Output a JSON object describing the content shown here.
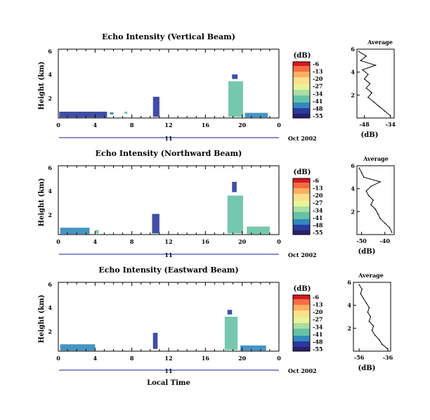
{
  "chart_data": [
    {
      "type": "heatmap",
      "title": "Echo Intensity (Vertical Beam)",
      "ylabel": "Height (km)",
      "yticks": [
        "2",
        "4",
        "6"
      ],
      "ylim": [
        0,
        6
      ],
      "xticks": [
        "0",
        "4",
        "8",
        "12",
        "16",
        "20",
        "0"
      ],
      "day_label": "11",
      "date_label": "Oct 2002",
      "colorbar": {
        "label": "(dB)",
        "levels": [
          "-6",
          "-13",
          "-20",
          "-27",
          "-34",
          "-41",
          "-48",
          "-55"
        ]
      },
      "echoes": [
        {
          "hour": 0.1,
          "dur": 5.2,
          "h0": 0.05,
          "h1": 0.55,
          "db": -48
        },
        {
          "hour": 5.6,
          "dur": 0.4,
          "h0": 0.3,
          "h1": 0.5,
          "db": -45
        },
        {
          "hour": 7.2,
          "dur": 0.3,
          "h0": 0.35,
          "h1": 0.55,
          "db": -40
        },
        {
          "hour": 10.3,
          "dur": 0.7,
          "h0": 0.1,
          "h1": 1.85,
          "db": -50
        },
        {
          "hour": 18.5,
          "dur": 1.6,
          "h0": 0.1,
          "h1": 3.2,
          "db": -38
        },
        {
          "hour": 18.9,
          "dur": 0.6,
          "h0": 3.4,
          "h1": 3.8,
          "db": -50
        },
        {
          "hour": 20.3,
          "dur": 2.5,
          "h0": 0.05,
          "h1": 0.45,
          "db": -42
        }
      ],
      "profile": {
        "title": "Average",
        "xlabel": "(dB)",
        "xticks": [
          "-48",
          "-34"
        ],
        "xlim": [
          -52,
          -32
        ],
        "heights": [
          0.2,
          0.6,
          1.0,
          1.4,
          1.8,
          2.2,
          2.6,
          3.0,
          3.4,
          3.8,
          4.2,
          4.6,
          5.0,
          5.4,
          5.8
        ],
        "values": [
          -34,
          -37,
          -40,
          -43,
          -46,
          -44,
          -47,
          -45,
          -48,
          -46,
          -49,
          -42,
          -50,
          -47,
          -51
        ]
      }
    },
    {
      "type": "heatmap",
      "title": "Echo Intensity (Northward Beam)",
      "ylabel": "Height (km)",
      "yticks": [
        "2",
        "4",
        "6"
      ],
      "ylim": [
        0,
        6
      ],
      "xticks": [
        "0",
        "4",
        "8",
        "12",
        "16",
        "20",
        "0"
      ],
      "day_label": "11",
      "date_label": "Oct 2002",
      "colorbar": {
        "label": "(dB)",
        "levels": [
          "-6",
          "-13",
          "-20",
          "-27",
          "-34",
          "-41",
          "-48",
          "-55"
        ]
      },
      "echoes": [
        {
          "hour": 0.2,
          "dur": 3.2,
          "h0": 0.05,
          "h1": 0.6,
          "db": -45
        },
        {
          "hour": 4.0,
          "dur": 0.4,
          "h0": 0.1,
          "h1": 0.4,
          "db": -40
        },
        {
          "hour": 10.2,
          "dur": 0.8,
          "h0": 0.1,
          "h1": 1.8,
          "db": -48
        },
        {
          "hour": 18.4,
          "dur": 1.7,
          "h0": 0.1,
          "h1": 3.4,
          "db": -40
        },
        {
          "hour": 18.9,
          "dur": 0.5,
          "h0": 3.7,
          "h1": 4.6,
          "db": -50
        },
        {
          "hour": 20.5,
          "dur": 2.5,
          "h0": 0.05,
          "h1": 0.7,
          "db": -40
        }
      ],
      "profile": {
        "title": "Average",
        "xlabel": "(dB)",
        "xticks": [
          "-50",
          "-40"
        ],
        "xlim": [
          -52,
          -36
        ],
        "heights": [
          0.2,
          0.6,
          1.0,
          1.4,
          1.8,
          2.2,
          2.6,
          3.0,
          3.4,
          3.8,
          4.2,
          4.6,
          5.0,
          5.4,
          5.8
        ],
        "values": [
          -37,
          -38,
          -40,
          -42,
          -43,
          -44,
          -46,
          -45,
          -47,
          -48,
          -46,
          -42,
          -49,
          -50,
          -51
        ]
      }
    },
    {
      "type": "heatmap",
      "title": "Echo Intensity (Eastward Beam)",
      "ylabel": "Height (km)",
      "yticks": [
        "2",
        "4",
        "6"
      ],
      "ylim": [
        0,
        6
      ],
      "xticks": [
        "0",
        "4",
        "8",
        "12",
        "16",
        "20",
        "0"
      ],
      "day_label": "11",
      "date_label": "Oct 2002",
      "xlabel": "Local Time",
      "colorbar": {
        "label": "(dB)",
        "levels": [
          "-6",
          "-13",
          "-20",
          "-27",
          "-34",
          "-41",
          "-48",
          "-55"
        ]
      },
      "echoes": [
        {
          "hour": 0.2,
          "dur": 3.8,
          "h0": 0.05,
          "h1": 0.6,
          "db": -45
        },
        {
          "hour": 10.3,
          "dur": 0.5,
          "h0": 0.2,
          "h1": 1.6,
          "db": -48
        },
        {
          "hour": 18.1,
          "dur": 1.4,
          "h0": 0.1,
          "h1": 3.0,
          "db": -38
        },
        {
          "hour": 18.4,
          "dur": 0.5,
          "h0": 3.2,
          "h1": 3.6,
          "db": -50
        },
        {
          "hour": 19.8,
          "dur": 2.8,
          "h0": 0.05,
          "h1": 0.5,
          "db": -42
        }
      ],
      "profile": {
        "title": "Average",
        "xlabel": "(dB)",
        "xticks": [
          "-56",
          "-36"
        ],
        "xlim": [
          -60,
          -34
        ],
        "heights": [
          0.2,
          0.6,
          1.0,
          1.4,
          1.8,
          2.2,
          2.6,
          3.0,
          3.4,
          3.8,
          4.2,
          4.6,
          5.0,
          5.4,
          5.8
        ],
        "values": [
          -36,
          -40,
          -42,
          -45,
          -47,
          -46,
          -49,
          -48,
          -50,
          -49,
          -51,
          -53,
          -55,
          -54,
          -56
        ]
      }
    }
  ]
}
